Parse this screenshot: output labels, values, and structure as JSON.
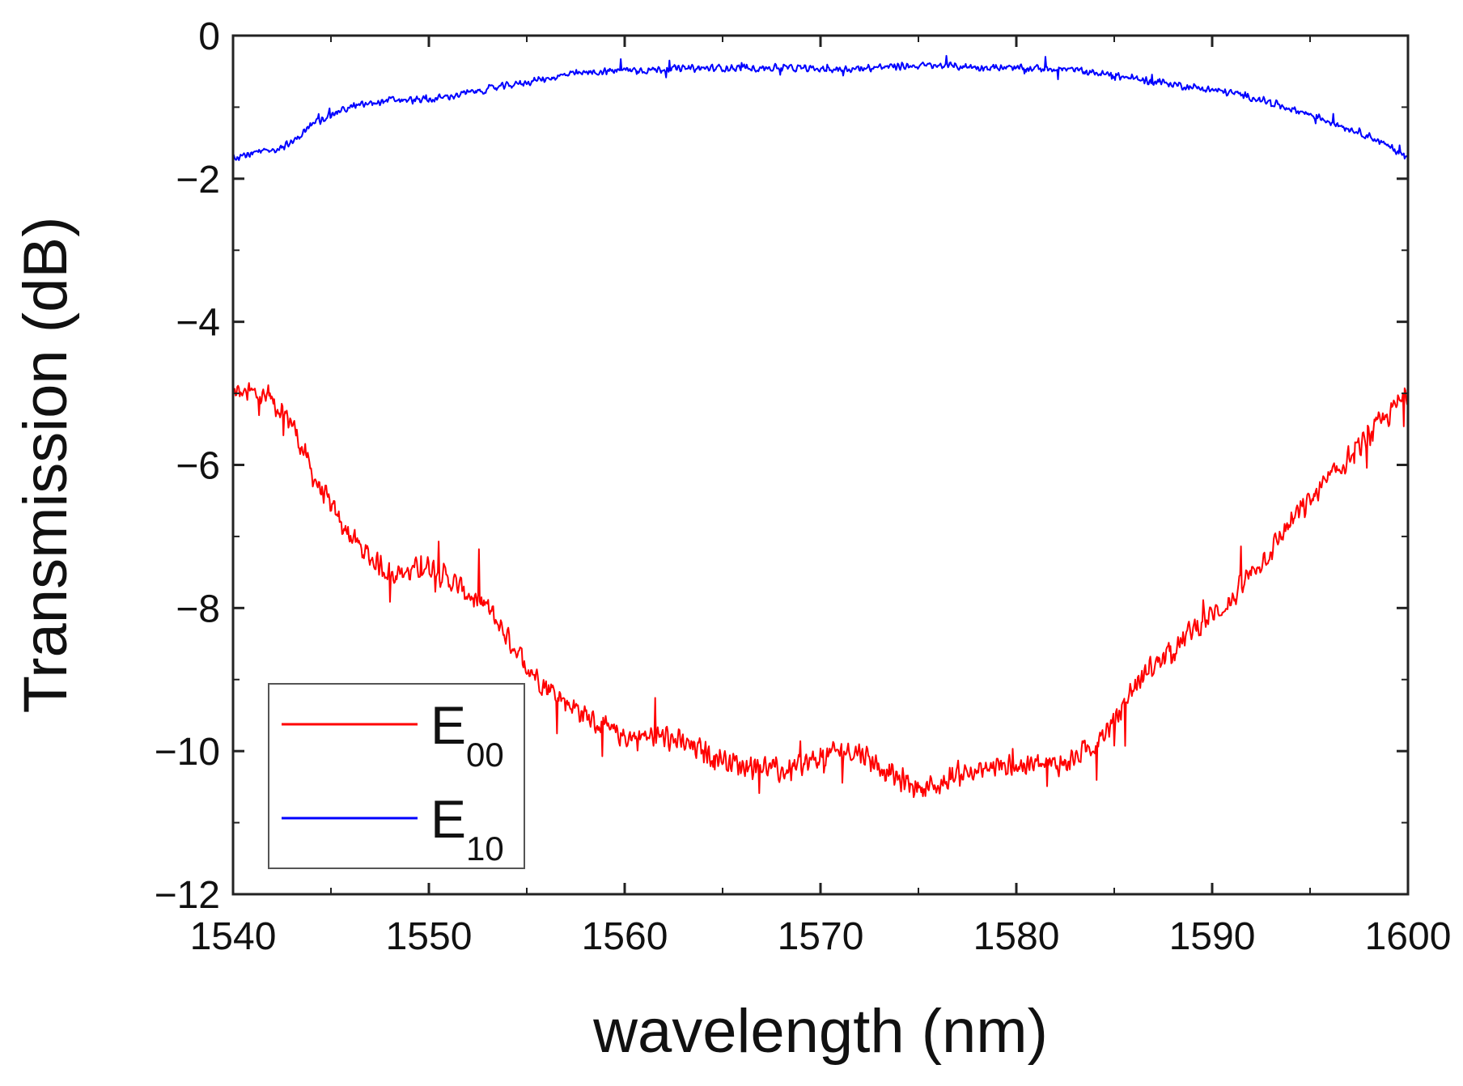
{
  "chart_data": {
    "type": "line",
    "title": "",
    "xlabel": "wavelength (nm)",
    "ylabel": "Transmission (dB)",
    "xlim": [
      1540,
      1600
    ],
    "ylim": [
      -12,
      0
    ],
    "xticks": [
      1540,
      1550,
      1560,
      1570,
      1580,
      1590,
      1600
    ],
    "yticks": [
      0,
      -2,
      -4,
      -6,
      -8,
      -10,
      -12
    ],
    "xtick_labels": [
      "1540",
      "1550",
      "1560",
      "1570",
      "1580",
      "1590",
      "1600"
    ],
    "ytick_labels": [
      "0",
      "−2",
      "−4",
      "−6",
      "−8",
      "−10",
      "−12"
    ],
    "grid": false,
    "legend_position": "bottom-left",
    "series": [
      {
        "name": "E00",
        "legend_main": "E",
        "legend_sub": "00",
        "color": "#ff0000",
        "x": [
          1540,
          1541,
          1542,
          1543,
          1544,
          1545,
          1546,
          1547,
          1548,
          1549,
          1550,
          1551,
          1552,
          1553,
          1554,
          1555,
          1556,
          1557,
          1558,
          1559,
          1560,
          1561,
          1562,
          1563,
          1564,
          1565,
          1566,
          1567,
          1568,
          1569,
          1570,
          1571,
          1572,
          1573,
          1574,
          1575,
          1576,
          1577,
          1578,
          1579,
          1580,
          1581,
          1582,
          1583,
          1584,
          1585,
          1586,
          1587,
          1588,
          1589,
          1590,
          1591,
          1592,
          1593,
          1594,
          1595,
          1596,
          1597,
          1598,
          1599,
          1600
        ],
        "y": [
          -5.0,
          -5.0,
          -5.1,
          -5.4,
          -6.1,
          -6.6,
          -7.0,
          -7.3,
          -7.5,
          -7.5,
          -7.4,
          -7.6,
          -7.8,
          -8.0,
          -8.4,
          -8.8,
          -9.1,
          -9.3,
          -9.5,
          -9.7,
          -9.8,
          -9.8,
          -9.8,
          -9.9,
          -10.0,
          -10.1,
          -10.2,
          -10.2,
          -10.3,
          -10.2,
          -10.1,
          -10.0,
          -10.0,
          -10.2,
          -10.4,
          -10.5,
          -10.5,
          -10.3,
          -10.3,
          -10.2,
          -10.2,
          -10.2,
          -10.2,
          -10.1,
          -9.9,
          -9.6,
          -9.1,
          -8.8,
          -8.6,
          -8.3,
          -8.1,
          -7.9,
          -7.5,
          -7.2,
          -6.8,
          -6.5,
          -6.2,
          -5.9,
          -5.6,
          -5.3,
          -5.0
        ],
        "noise": 0.2
      },
      {
        "name": "E10",
        "legend_main": "E",
        "legend_sub": "10",
        "color": "#0000ff",
        "x": [
          1540,
          1541,
          1542,
          1543,
          1544,
          1545,
          1546,
          1547,
          1548,
          1549,
          1550,
          1551,
          1552,
          1553,
          1554,
          1555,
          1556,
          1557,
          1558,
          1559,
          1560,
          1561,
          1562,
          1563,
          1564,
          1565,
          1566,
          1567,
          1568,
          1569,
          1570,
          1571,
          1572,
          1573,
          1574,
          1575,
          1576,
          1577,
          1578,
          1579,
          1580,
          1581,
          1582,
          1583,
          1584,
          1585,
          1586,
          1587,
          1588,
          1589,
          1590,
          1591,
          1592,
          1593,
          1594,
          1595,
          1596,
          1597,
          1598,
          1599,
          1600
        ],
        "y": [
          -1.7,
          -1.65,
          -1.6,
          -1.5,
          -1.25,
          -1.1,
          -1.0,
          -0.95,
          -0.9,
          -0.9,
          -0.9,
          -0.85,
          -0.8,
          -0.75,
          -0.7,
          -0.65,
          -0.6,
          -0.55,
          -0.52,
          -0.5,
          -0.48,
          -0.48,
          -0.47,
          -0.46,
          -0.46,
          -0.45,
          -0.45,
          -0.45,
          -0.45,
          -0.46,
          -0.47,
          -0.47,
          -0.46,
          -0.44,
          -0.43,
          -0.42,
          -0.42,
          -0.43,
          -0.44,
          -0.45,
          -0.46,
          -0.46,
          -0.46,
          -0.48,
          -0.52,
          -0.56,
          -0.6,
          -0.64,
          -0.68,
          -0.72,
          -0.76,
          -0.8,
          -0.86,
          -0.94,
          -1.02,
          -1.1,
          -1.2,
          -1.3,
          -1.4,
          -1.55,
          -1.7
        ],
        "noise": 0.06
      }
    ]
  }
}
